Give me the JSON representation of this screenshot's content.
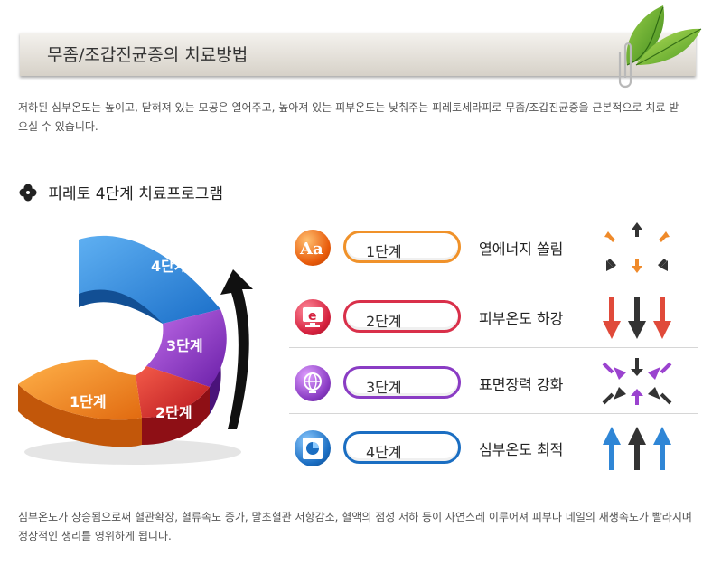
{
  "title": "무좀/조갑진균증의 치료방법",
  "intro": "저하된 심부온도는 높이고, 닫혀져 있는 모공은 열어주고, 높아져 있는 피부온도는 낮춰주는 피레토세라피로 무좀/조갑진균증을 근본적으로 치료 받으실 수 있습니다.",
  "section_title": "피레토 4단계 치료프로그램",
  "chart_labels": [
    "1단계",
    "2단계",
    "3단계",
    "4단계"
  ],
  "steps": [
    {
      "label": "1단계",
      "desc": "열에너지 쏠림",
      "icon": "text-aa-icon",
      "color": "#f07c1a"
    },
    {
      "label": "2단계",
      "desc": "피부온도 하강",
      "icon": "monitor-e-icon",
      "color": "#d9304a"
    },
    {
      "label": "3단계",
      "desc": "표면장력 강화",
      "icon": "globe-icon",
      "color": "#8a3cc4"
    },
    {
      "label": "4단계",
      "desc": "심부온도 최적",
      "icon": "pie-chart-icon",
      "color": "#1b6ec2"
    }
  ],
  "footer": "심부온도가 상승됨으로써 혈관확장, 혈류속도 증가, 말초혈관 저항감소, 혈액의 점성 저하 등이 자연스레 이루어져 피부나 네일의 재생속도가 빨라지며 정상적인 생리를 영위하게 됩니다."
}
